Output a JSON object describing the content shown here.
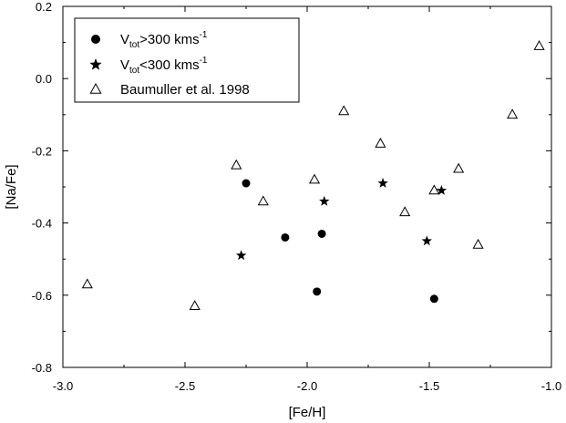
{
  "chart_data": {
    "type": "scatter",
    "xlabel": "[Fe/H]",
    "ylabel": "[Na/Fe]",
    "xlim": [
      -3.0,
      -1.0
    ],
    "ylim": [
      -0.8,
      0.2
    ],
    "x_ticks": [
      -3.0,
      -2.5,
      -2.0,
      -1.5,
      -1.0
    ],
    "x_tick_labels": [
      "-3.0",
      "-2.5",
      "-2.0",
      "-1.5",
      "-1.0"
    ],
    "y_ticks": [
      -0.8,
      -0.6,
      -0.4,
      -0.2,
      0.0,
      0.2
    ],
    "y_tick_labels": [
      "-0.8",
      "-0.6",
      "-0.4",
      "-0.2",
      "0.0",
      "0.2"
    ],
    "grid": false,
    "legend_position": "top-left",
    "series": [
      {
        "name_main": "V",
        "name_sub": "tot",
        "name_rest": ">300 kms",
        "name_sup": "-1",
        "marker": "filled-circle",
        "color": "#000000",
        "points": [
          {
            "x": -2.25,
            "y": -0.29
          },
          {
            "x": -2.09,
            "y": -0.44
          },
          {
            "x": -1.94,
            "y": -0.43
          },
          {
            "x": -1.96,
            "y": -0.59
          },
          {
            "x": -1.48,
            "y": -0.61
          }
        ]
      },
      {
        "name_main": "V",
        "name_sub": "tot",
        "name_rest": "<300 kms",
        "name_sup": "-1",
        "marker": "filled-star",
        "color": "#000000",
        "points": [
          {
            "x": -2.27,
            "y": -0.49
          },
          {
            "x": -1.93,
            "y": -0.34
          },
          {
            "x": -1.69,
            "y": -0.29
          },
          {
            "x": -1.51,
            "y": -0.45
          },
          {
            "x": -1.45,
            "y": -0.31
          }
        ]
      },
      {
        "name": "Baumuller et al. 1998",
        "marker": "open-triangle",
        "color": "#000000",
        "points": [
          {
            "x": -2.9,
            "y": -0.57
          },
          {
            "x": -2.46,
            "y": -0.63
          },
          {
            "x": -2.29,
            "y": -0.24
          },
          {
            "x": -2.18,
            "y": -0.34
          },
          {
            "x": -1.97,
            "y": -0.28
          },
          {
            "x": -1.85,
            "y": -0.09
          },
          {
            "x": -1.7,
            "y": -0.18
          },
          {
            "x": -1.6,
            "y": -0.37
          },
          {
            "x": -1.48,
            "y": -0.31
          },
          {
            "x": -1.38,
            "y": -0.25
          },
          {
            "x": -1.3,
            "y": -0.46
          },
          {
            "x": -1.16,
            "y": -0.1
          },
          {
            "x": -1.05,
            "y": 0.09
          }
        ]
      }
    ]
  }
}
